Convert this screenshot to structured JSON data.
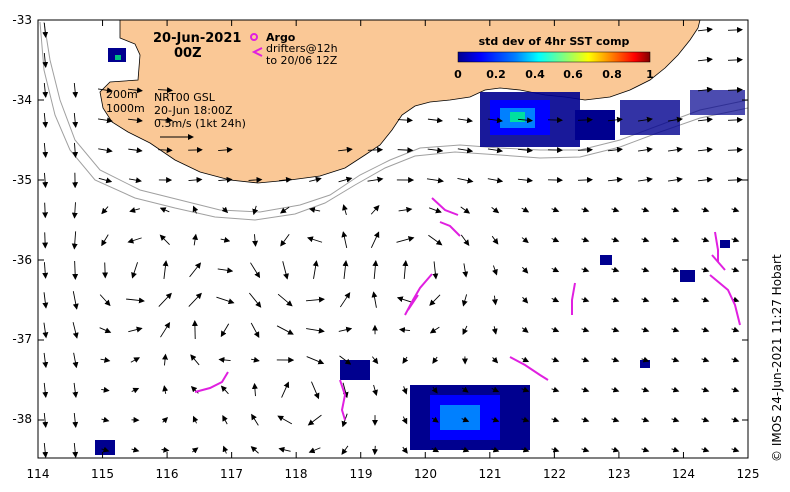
{
  "map": {
    "date": "20-Jun-2021",
    "time": "00Z",
    "lon_ticks": [
      "114",
      "115",
      "116",
      "117",
      "118",
      "119",
      "120",
      "121",
      "122",
      "123",
      "124",
      "125"
    ],
    "lat_ticks": [
      "-33",
      "-34",
      "-35",
      "-36",
      "-37",
      "-38"
    ],
    "credit": "© IMOS 24-Jun-2021 11:27 Hobart",
    "colors": {
      "land": "#fac896",
      "ocean": "#ffffff",
      "argo": "#e020e0",
      "drifter": "#e020e0",
      "isobath": "#a0a0a0",
      "arrow": "#000000"
    }
  },
  "legend": {
    "argo_label": "Argo",
    "drifter_label_1": "drifters@12h",
    "drifter_label_2": "to 20/06 12Z",
    "isobath_200": "200m",
    "isobath_1000": "1000m",
    "nrt_1": "NRT00 GSL",
    "nrt_2": "20-Jun 18:00Z",
    "nrt_3": "0.5m/s (1kt 24h)"
  },
  "colorbar": {
    "title": "std dev of 4hr SST comp",
    "ticks": [
      "0",
      "0.2",
      "0.4",
      "0.6",
      "0.8",
      "1"
    ],
    "min": 0,
    "max": 1,
    "colormap": [
      "#00008f",
      "#0000ff",
      "#0080ff",
      "#00ffff",
      "#80ff80",
      "#ffff00",
      "#ff8000",
      "#ff0000",
      "#800000"
    ]
  }
}
